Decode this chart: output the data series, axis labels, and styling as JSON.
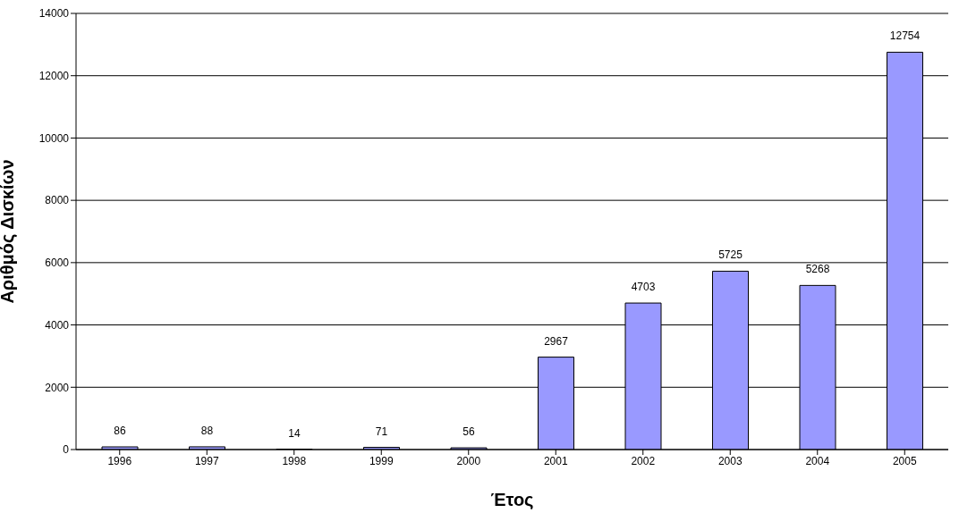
{
  "chart_data": {
    "type": "bar",
    "xlabel": "Έτος",
    "ylabel": "Αριθμός Δισκίων",
    "categories": [
      "1996",
      "1997",
      "1998",
      "1999",
      "2000",
      "2001",
      "2002",
      "2003",
      "2004",
      "2005"
    ],
    "values": [
      86,
      88,
      14,
      71,
      56,
      2967,
      4703,
      5725,
      5268,
      12754
    ],
    "color": "#9999ff",
    "ylim": [
      0,
      14000
    ],
    "yticks": [
      0,
      2000,
      4000,
      6000,
      8000,
      10000,
      12000,
      14000
    ],
    "grid": "y",
    "data_labels": true
  }
}
